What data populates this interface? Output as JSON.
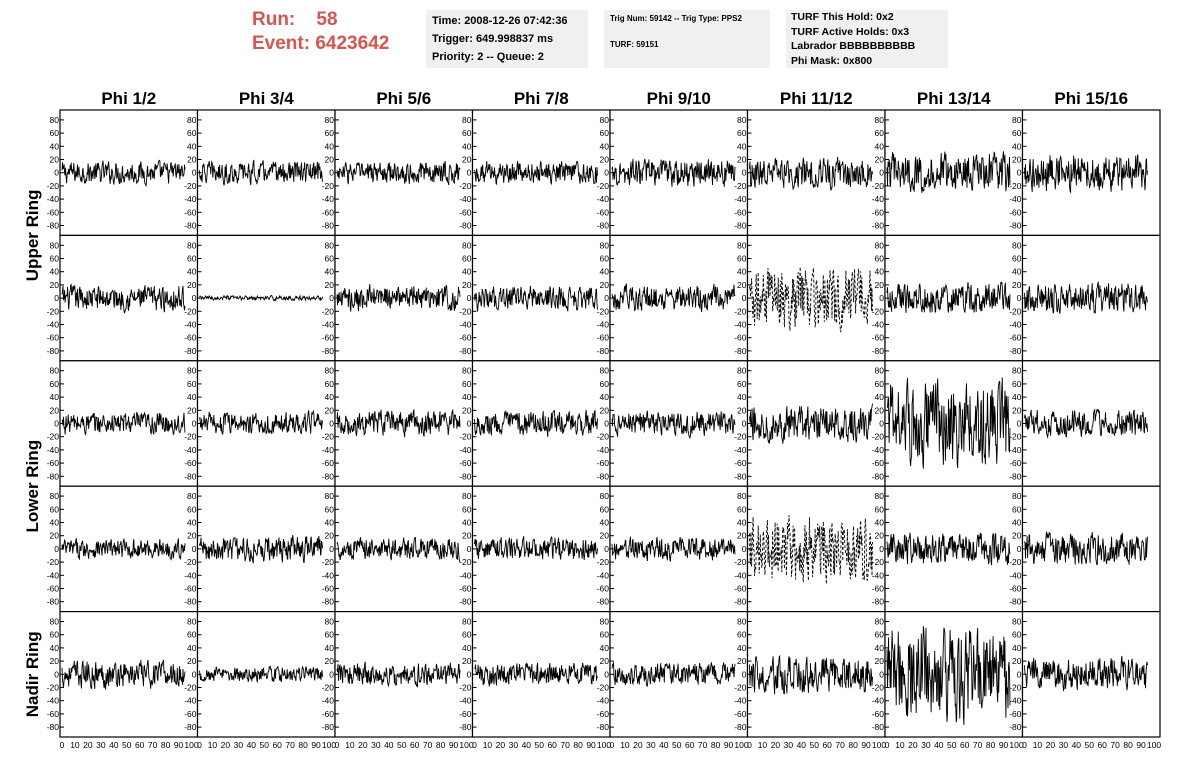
{
  "header": {
    "run_label": "Run:",
    "run_value": "58",
    "event_label": "Event:",
    "event_value": "6423642",
    "accent_color": "#d9534f"
  },
  "info_time": {
    "line1": "Time: 2008-12-26 07:42:36",
    "line2": "Trigger: 649.998837 ms",
    "line3": "Priority: 2 -- Queue: 2"
  },
  "info_trig": {
    "line1": "Trig Num: 59142 -- Trig Type: PPS2",
    "line2": "TURF: 59151"
  },
  "info_turf": {
    "line1": "TURF This Hold: 0x2",
    "line2": "TURF Active Holds: 0x3",
    "line3": "Labrador BBBBBBBBBB",
    "line4": "Phi Mask: 0x800"
  },
  "chart_data": {
    "type": "line",
    "columns": [
      "Phi 1/2",
      "Phi 3/4",
      "Phi 5/6",
      "Phi 7/8",
      "Phi 9/10",
      "Phi 11/12",
      "Phi 13/14",
      "Phi 15/16"
    ],
    "row_labels": [
      "Upper Ring",
      "Lower Ring",
      "Nadir Ring"
    ],
    "ylim": [
      -95,
      95
    ],
    "xlim": [
      0,
      100
    ],
    "yticks": [
      -80,
      -60,
      -40,
      -20,
      0,
      20,
      40,
      60,
      80
    ],
    "ytick_labels": [
      "-80",
      "-60",
      "-40",
      "-20",
      "0",
      "20",
      "40",
      "60",
      "80"
    ],
    "xticks": [
      0,
      10,
      20,
      30,
      40,
      50,
      60,
      70,
      80,
      90,
      100
    ],
    "xtick_labels": [
      "0",
      "10",
      "20",
      "30",
      "40",
      "50",
      "60",
      "70",
      "80",
      "90",
      "100"
    ],
    "amplitudes": [
      [
        15,
        15,
        15,
        15,
        18,
        20,
        26,
        24
      ],
      [
        17,
        3,
        17,
        16,
        17,
        40,
        20,
        20
      ],
      [
        15,
        15,
        17,
        16,
        16,
        24,
        55,
        17
      ],
      [
        13,
        17,
        15,
        15,
        15,
        45,
        21,
        21
      ],
      [
        18,
        10,
        15,
        15,
        15,
        25,
        62,
        22
      ]
    ],
    "dashed_channels": [
      [
        1,
        5
      ],
      [
        3,
        5
      ]
    ]
  }
}
